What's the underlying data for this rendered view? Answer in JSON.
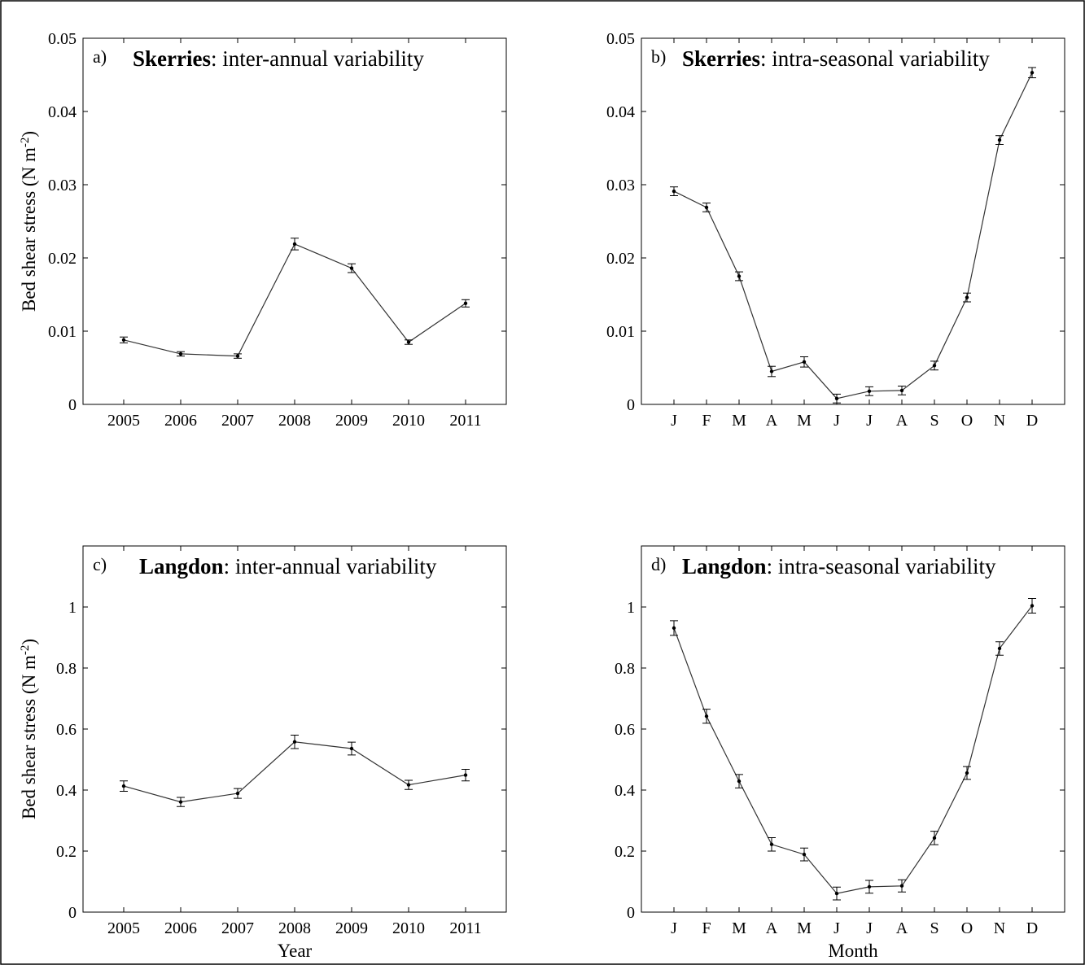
{
  "chart_data": [
    {
      "id": "a",
      "type": "line",
      "panel_letter": "a)",
      "title_site": "Skerries",
      "title_rest": ":  inter-annual variability",
      "ylabel": "Bed shear stress (N m",
      "ylabel_sup": "-2",
      "ylabel_close": ")",
      "xlabel": "",
      "ylim": [
        0,
        0.05
      ],
      "yticks": [
        0,
        0.01,
        0.02,
        0.03,
        0.04,
        0.05
      ],
      "ytick_labels": [
        "0",
        "0.01",
        "0.02",
        "0.03",
        "0.04",
        "0.05"
      ],
      "categories": [
        "2005",
        "2006",
        "2007",
        "2008",
        "2009",
        "2010",
        "2011"
      ],
      "values": [
        0.0088,
        0.0069,
        0.0066,
        0.0219,
        0.0186,
        0.0085,
        0.0138
      ],
      "errors": [
        0.0004,
        0.0003,
        0.0003,
        0.0008,
        0.0006,
        0.0003,
        0.0005
      ]
    },
    {
      "id": "b",
      "type": "line",
      "panel_letter": "b)",
      "title_site": "Skerries",
      "title_rest": ":  intra-seasonal variability",
      "ylabel": "",
      "xlabel": "",
      "ylim": [
        0,
        0.05
      ],
      "yticks": [
        0,
        0.01,
        0.02,
        0.03,
        0.04,
        0.05
      ],
      "ytick_labels": [
        "0",
        "0.01",
        "0.02",
        "0.03",
        "0.04",
        "0.05"
      ],
      "categories": [
        "J",
        "F",
        "M",
        "A",
        "M",
        "J",
        "J",
        "A",
        "S",
        "O",
        "N",
        "D"
      ],
      "values": [
        0.0291,
        0.0269,
        0.0175,
        0.0045,
        0.0058,
        0.0008,
        0.0018,
        0.0019,
        0.0053,
        0.0146,
        0.0361,
        0.0453
      ],
      "errors": [
        0.0006,
        0.0006,
        0.0006,
        0.0007,
        0.0007,
        0.0006,
        0.0006,
        0.0006,
        0.0006,
        0.0006,
        0.0006,
        0.0007
      ]
    },
    {
      "id": "c",
      "type": "line",
      "panel_letter": "c)",
      "title_site": "Langdon",
      "title_rest": ":  inter-annual variability",
      "ylabel": "Bed shear stress (N m",
      "ylabel_sup": "-2",
      "ylabel_close": ")",
      "xlabel": "Year",
      "ylim": [
        0,
        1.2
      ],
      "yticks": [
        0,
        0.2,
        0.4,
        0.6,
        0.8,
        1.0
      ],
      "ytick_labels": [
        "0",
        "0.2",
        "0.4",
        "0.6",
        "0.8",
        "1"
      ],
      "categories": [
        "2005",
        "2006",
        "2007",
        "2008",
        "2009",
        "2010",
        "2011"
      ],
      "values": [
        0.413,
        0.361,
        0.389,
        0.558,
        0.536,
        0.417,
        0.449
      ],
      "errors": [
        0.017,
        0.015,
        0.016,
        0.022,
        0.021,
        0.015,
        0.019
      ]
    },
    {
      "id": "d",
      "type": "line",
      "panel_letter": "d)",
      "title_site": "Langdon",
      "title_rest": ":  intra-seasonal variability",
      "ylabel": "",
      "xlabel": "Month",
      "ylim": [
        0,
        1.2
      ],
      "yticks": [
        0,
        0.2,
        0.4,
        0.6,
        0.8,
        1.0
      ],
      "ytick_labels": [
        "0",
        "0.2",
        "0.4",
        "0.6",
        "0.8",
        "1"
      ],
      "categories": [
        "J",
        "F",
        "M",
        "A",
        "M",
        "J",
        "J",
        "A",
        "S",
        "O",
        "N",
        "D"
      ],
      "values": [
        0.931,
        0.642,
        0.429,
        0.222,
        0.189,
        0.061,
        0.083,
        0.086,
        0.243,
        0.456,
        0.864,
        1.004
      ],
      "errors": [
        0.024,
        0.023,
        0.022,
        0.022,
        0.021,
        0.021,
        0.021,
        0.02,
        0.022,
        0.021,
        0.022,
        0.024
      ]
    }
  ]
}
